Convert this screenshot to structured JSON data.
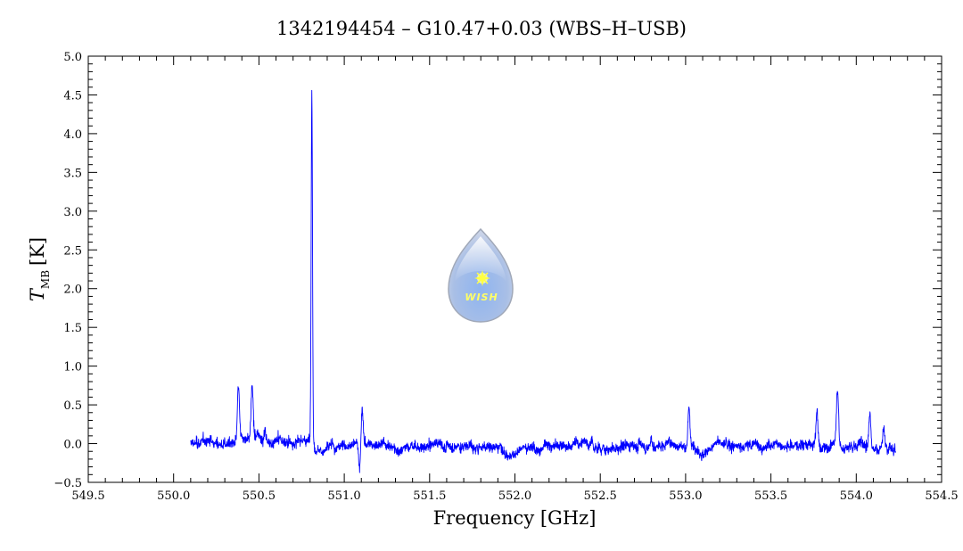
{
  "chart_data": {
    "type": "line",
    "title": "1342194454 – G10.47+0.03 (WBS–H–USB)",
    "xlabel": "Frequency [GHz]",
    "ylabel_symbol": "T",
    "ylabel_subscript": "MB",
    "ylabel_unit": "[K]",
    "xlim": [
      549.5,
      554.5
    ],
    "ylim": [
      -0.5,
      5.0
    ],
    "x_ticks": [
      549.5,
      550.0,
      550.5,
      551.0,
      551.5,
      552.0,
      552.5,
      553.0,
      553.5,
      554.0,
      554.5
    ],
    "x_tick_labels": [
      "549.5",
      "550.0",
      "550.5",
      "551.0",
      "551.5",
      "552.0",
      "552.5",
      "553.0",
      "553.5",
      "554.0",
      "554.5"
    ],
    "y_ticks": [
      -0.5,
      0.0,
      0.5,
      1.0,
      1.5,
      2.0,
      2.5,
      3.0,
      3.5,
      4.0,
      4.5,
      5.0
    ],
    "y_tick_labels": [
      "−0.5",
      "0.0",
      "0.5",
      "1.0",
      "1.5",
      "2.0",
      "2.5",
      "3.0",
      "3.5",
      "4.0",
      "4.5",
      "5.0"
    ],
    "grid": false,
    "series": [
      {
        "color": "#0000ff",
        "x_start": 550.1,
        "x_end": 554.23,
        "baseline": 0.0,
        "noise_rms": 0.05,
        "features": [
          {
            "x": 550.38,
            "peak": 0.68
          },
          {
            "x": 550.46,
            "peak": 0.7
          },
          {
            "x": 550.535,
            "peak": 0.15
          },
          {
            "x": 550.81,
            "peak": 4.55
          },
          {
            "x": 551.09,
            "peak": -0.3
          },
          {
            "x": 551.105,
            "peak": 0.45
          },
          {
            "x": 552.45,
            "peak": 0.15
          },
          {
            "x": 552.8,
            "peak": 0.15
          },
          {
            "x": 553.02,
            "peak": 0.5
          },
          {
            "x": 553.77,
            "peak": 0.45
          },
          {
            "x": 553.89,
            "peak": 0.8
          },
          {
            "x": 554.08,
            "peak": 0.47
          },
          {
            "x": 554.16,
            "peak": 0.25
          }
        ]
      }
    ],
    "logo": {
      "text": "WISH"
    }
  }
}
